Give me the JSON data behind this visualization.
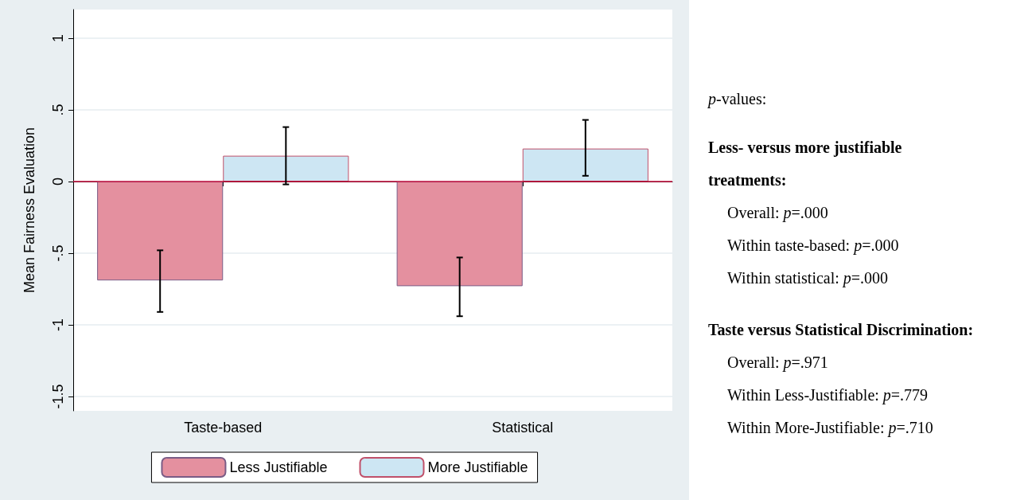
{
  "chart_data": {
    "type": "bar",
    "ylabel": "Mean Fairness Evaluation",
    "categories": [
      "Taste-based",
      "Statistical"
    ],
    "series": [
      {
        "name": "Less Justifiable",
        "color": "#e4909f",
        "values": [
          -0.69,
          -0.73
        ],
        "errors": [
          [
            -0.91,
            -0.48
          ],
          [
            -0.94,
            -0.53
          ]
        ]
      },
      {
        "name": "More Justifiable",
        "color": "#cde6f3",
        "values": [
          0.18,
          0.23
        ],
        "errors": [
          [
            -0.02,
            0.38
          ],
          [
            0.04,
            0.43
          ]
        ]
      }
    ],
    "ylim": [
      -1.6,
      1.2
    ],
    "yticks": [
      {
        "value": -1.5,
        "label": "-1.5"
      },
      -1,
      {
        "value": -0.5,
        "label": "-.5"
      },
      0,
      {
        "value": 0.5,
        "label": ".5"
      },
      1
    ],
    "grid": "y",
    "legend": "bottom",
    "ref_lines": [
      {
        "axis": "y",
        "value": 0,
        "color": "#c8103e"
      }
    ],
    "annotations": [
      "p-values:",
      "Less- versus more justifiable treatments:",
      "Overall: p=.000",
      "Within taste-based: p=.000",
      "Within statistical: p=.000",
      "Taste versus Statistical Discrimination:",
      "Overall: p=.971",
      "Within Less-Justifiable:  p=.779",
      "Within More-Justifiable: p=.710"
    ]
  }
}
